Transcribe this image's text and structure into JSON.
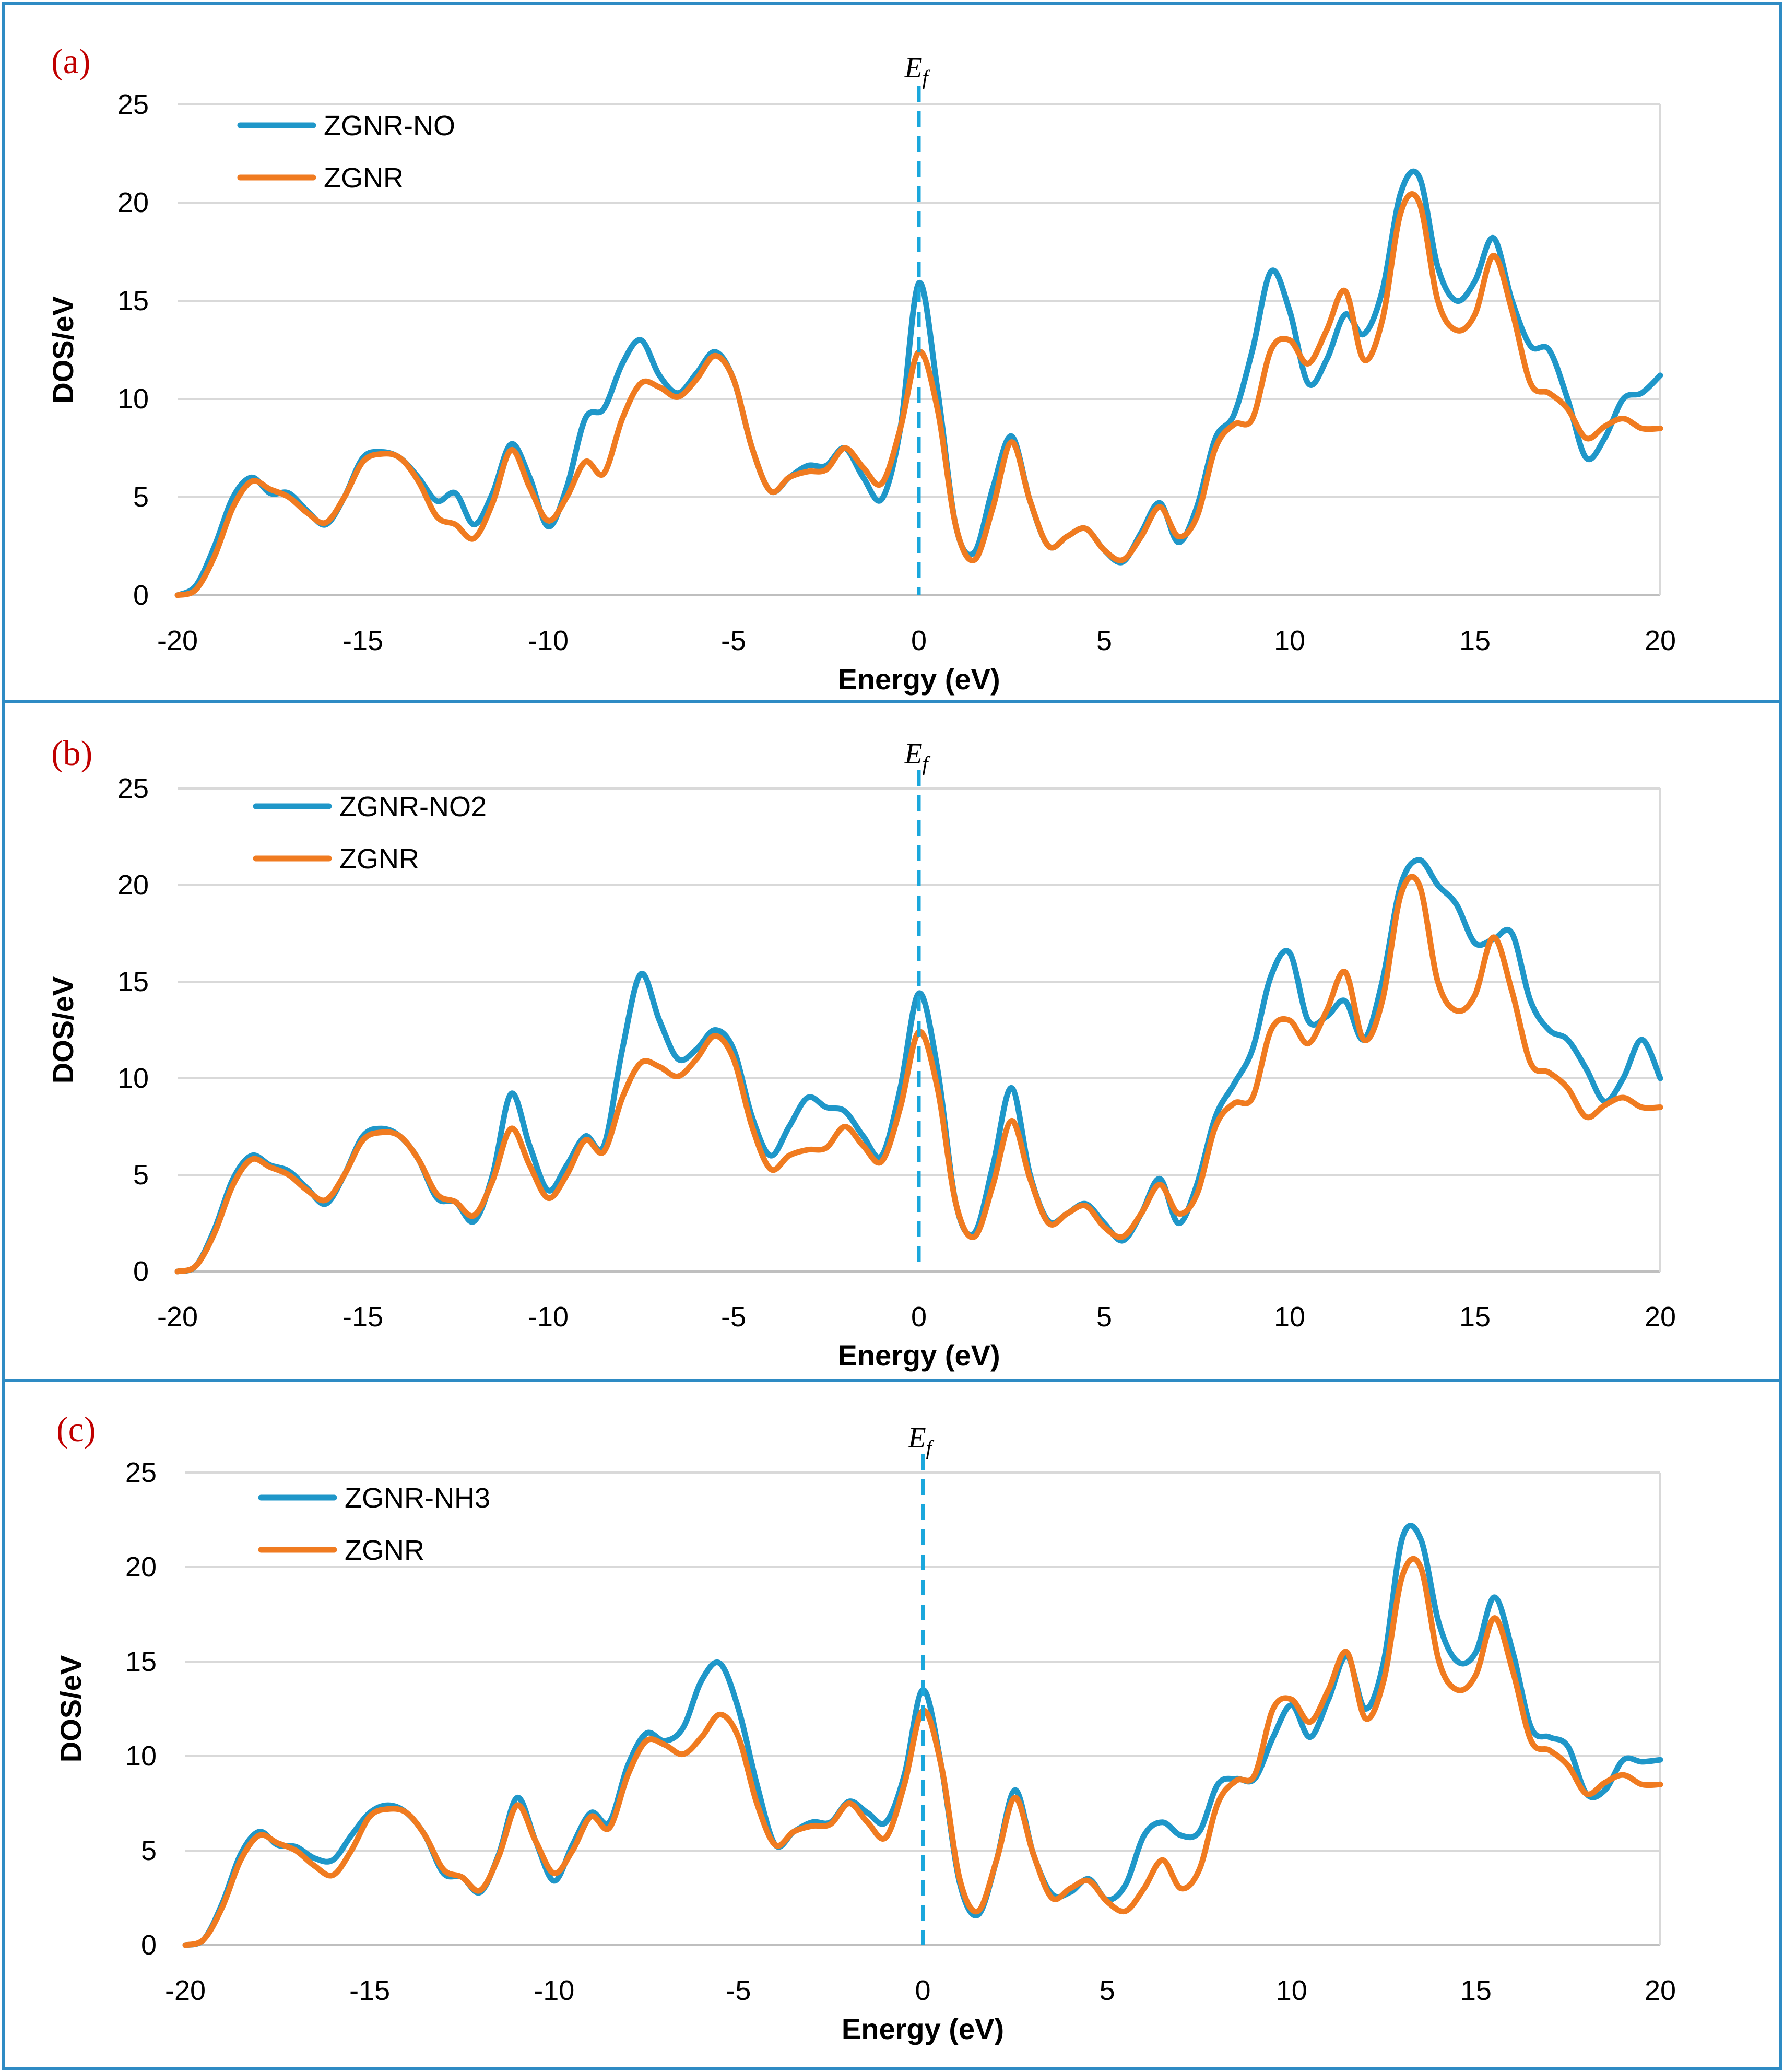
{
  "colors": {
    "doped": "#1f97c9",
    "pristine": "#f07b20",
    "fermi": "#1aa7dc",
    "panel_label": "#c00000"
  },
  "fermi_label": {
    "main": "E",
    "sub": "f"
  },
  "chart_data": [
    {
      "type": "line",
      "panel_label": "(a)",
      "xlabel": "Energy (eV)",
      "ylabel": "DOS/eV",
      "xlim": [
        -20,
        20
      ],
      "ylim": [
        0,
        25
      ],
      "xticks": [
        -20,
        -15,
        -10,
        -5,
        0,
        5,
        10,
        15,
        20
      ],
      "yticks": [
        0,
        5,
        10,
        15,
        20,
        25
      ],
      "fermi_x": 0,
      "series": [
        {
          "name": "ZGNR-NO",
          "color_key": "doped",
          "x": [
            -20,
            -19.5,
            -19,
            -18.5,
            -18,
            -17.5,
            -17,
            -16.5,
            -16,
            -15.5,
            -15,
            -14.5,
            -14,
            -13.5,
            -13,
            -12.5,
            -12,
            -11.5,
            -11,
            -10.5,
            -10,
            -9.5,
            -9,
            -8.5,
            -8,
            -7.5,
            -7,
            -6.5,
            -6,
            -5.5,
            -5,
            -4.5,
            -4,
            -3.5,
            -3,
            -2.5,
            -2,
            -1.5,
            -1,
            -0.5,
            0,
            0.5,
            1,
            1.5,
            2,
            2.5,
            3,
            3.5,
            4,
            4.5,
            5,
            5.5,
            6,
            6.5,
            7,
            7.5,
            8,
            8.5,
            9,
            9.5,
            10,
            10.5,
            11,
            11.5,
            12,
            12.5,
            13,
            13.5,
            14,
            14.5,
            15,
            15.5,
            16,
            16.5,
            17,
            17.5,
            18,
            18.5,
            19,
            19.5,
            20
          ],
          "y": [
            0,
            0.5,
            2.5,
            5.0,
            6.0,
            5.2,
            5.2,
            4.3,
            3.6,
            5.0,
            7.0,
            7.3,
            7.0,
            6.0,
            4.8,
            5.2,
            3.6,
            5.2,
            7.7,
            6.0,
            3.5,
            5.5,
            9.0,
            9.5,
            11.8,
            13.0,
            11.2,
            10.3,
            11.3,
            12.4,
            11.0,
            7.5,
            5.3,
            6.0,
            6.6,
            6.6,
            7.5,
            6.0,
            4.9,
            8.5,
            15.9,
            10.5,
            3.5,
            2.2,
            5.5,
            8.1,
            4.8,
            2.5,
            3.0,
            3.4,
            2.3,
            1.7,
            3.2,
            4.7,
            2.7,
            4.5,
            8.0,
            9.2,
            12.5,
            16.5,
            14.5,
            10.8,
            12.0,
            14.3,
            13.3,
            15.5,
            20.5,
            21.3,
            16.7,
            15.0,
            16.0,
            18.2,
            15.0,
            12.7,
            12.5,
            10.0,
            7.0,
            8.0,
            10.0,
            10.3,
            11.2
          ]
        },
        {
          "name": "ZGNR",
          "color_key": "pristine",
          "x": [
            -20,
            -19.5,
            -19,
            -18.5,
            -18,
            -17.5,
            -17,
            -16.5,
            -16,
            -15.5,
            -15,
            -14.5,
            -14,
            -13.5,
            -13,
            -12.5,
            -12,
            -11.5,
            -11,
            -10.5,
            -10,
            -9.5,
            -9,
            -8.5,
            -8,
            -7.5,
            -7,
            -6.5,
            -6,
            -5.5,
            -5,
            -4.5,
            -4,
            -3.5,
            -3,
            -2.5,
            -2,
            -1.5,
            -1,
            -0.5,
            0,
            0.5,
            1,
            1.5,
            2,
            2.5,
            3,
            3.5,
            4,
            4.5,
            5,
            5.5,
            6,
            6.5,
            7,
            7.5,
            8,
            8.5,
            9,
            9.5,
            10,
            10.5,
            11,
            11.5,
            12,
            12.5,
            13,
            13.5,
            14,
            14.5,
            15,
            15.5,
            16,
            16.5,
            17,
            17.5,
            18,
            18.5,
            19,
            19.5,
            20
          ],
          "y": [
            0,
            0.3,
            2.0,
            4.5,
            5.8,
            5.4,
            5.0,
            4.2,
            3.7,
            5.0,
            6.8,
            7.2,
            7.0,
            5.8,
            4.0,
            3.6,
            2.9,
            4.7,
            7.4,
            5.5,
            3.8,
            5.0,
            6.8,
            6.2,
            9.0,
            10.8,
            10.6,
            10.1,
            11.0,
            12.2,
            11.0,
            7.5,
            5.3,
            6.0,
            6.3,
            6.4,
            7.5,
            6.5,
            5.7,
            8.5,
            12.4,
            9.5,
            3.5,
            1.8,
            4.5,
            7.8,
            4.8,
            2.5,
            3.0,
            3.4,
            2.3,
            1.8,
            3.0,
            4.5,
            3.0,
            4.0,
            7.5,
            8.7,
            9.0,
            12.5,
            13.0,
            11.8,
            13.5,
            15.5,
            12.0,
            14.0,
            19.5,
            20.0,
            15.0,
            13.5,
            14.3,
            17.3,
            14.5,
            10.8,
            10.3,
            9.5,
            8.0,
            8.6,
            9.0,
            8.5,
            8.5
          ]
        }
      ]
    },
    {
      "type": "line",
      "panel_label": "(b)",
      "xlabel": "Energy (eV)",
      "ylabel": "DOS/eV",
      "xlim": [
        -20,
        20
      ],
      "ylim": [
        0,
        25
      ],
      "xticks": [
        -20,
        -15,
        -10,
        -5,
        0,
        5,
        10,
        15,
        20
      ],
      "yticks": [
        0,
        5,
        10,
        15,
        20,
        25
      ],
      "fermi_x": 0,
      "series": [
        {
          "name": "ZGNR-NO2",
          "color_key": "doped",
          "x": [
            -20,
            -19.5,
            -19,
            -18.5,
            -18,
            -17.5,
            -17,
            -16.5,
            -16,
            -15.5,
            -15,
            -14.5,
            -14,
            -13.5,
            -13,
            -12.5,
            -12,
            -11.5,
            -11,
            -10.5,
            -10,
            -9.5,
            -9,
            -8.5,
            -8,
            -7.5,
            -7,
            -6.5,
            -6,
            -5.5,
            -5,
            -4.5,
            -4,
            -3.5,
            -3,
            -2.5,
            -2,
            -1.5,
            -1,
            -0.5,
            0,
            0.5,
            1,
            1.5,
            2,
            2.5,
            3,
            3.5,
            4,
            4.5,
            5,
            5.5,
            6,
            6.5,
            7,
            7.5,
            8,
            8.5,
            9,
            9.5,
            10,
            10.5,
            11,
            11.5,
            12,
            12.5,
            13,
            13.5,
            14,
            14.5,
            15,
            15.5,
            16,
            16.5,
            17,
            17.5,
            18,
            18.5,
            19,
            19.5,
            20
          ],
          "y": [
            0,
            0.3,
            2.2,
            4.8,
            6.0,
            5.5,
            5.2,
            4.3,
            3.5,
            5.0,
            7.0,
            7.4,
            7.0,
            5.8,
            3.8,
            3.6,
            2.6,
            5.0,
            9.2,
            6.5,
            4.2,
            5.5,
            7.0,
            6.5,
            11.5,
            15.4,
            13.0,
            11.0,
            11.5,
            12.5,
            11.5,
            8.0,
            6.0,
            7.5,
            9.0,
            8.5,
            8.3,
            7.0,
            6.0,
            9.5,
            14.4,
            10.5,
            3.5,
            2.0,
            5.5,
            9.5,
            5.0,
            2.6,
            3.0,
            3.5,
            2.5,
            1.6,
            3.0,
            4.8,
            2.5,
            4.5,
            8.0,
            9.7,
            11.5,
            15.3,
            16.5,
            13.0,
            13.2,
            14.0,
            12.0,
            15.0,
            20.0,
            21.3,
            20.0,
            19.0,
            17.0,
            17.2,
            17.5,
            14.0,
            12.5,
            12.0,
            10.5,
            8.8,
            10.0,
            12.0,
            10.0
          ]
        },
        {
          "name": "ZGNR",
          "color_key": "pristine",
          "x": [
            -20,
            -19.5,
            -19,
            -18.5,
            -18,
            -17.5,
            -17,
            -16.5,
            -16,
            -15.5,
            -15,
            -14.5,
            -14,
            -13.5,
            -13,
            -12.5,
            -12,
            -11.5,
            -11,
            -10.5,
            -10,
            -9.5,
            -9,
            -8.5,
            -8,
            -7.5,
            -7,
            -6.5,
            -6,
            -5.5,
            -5,
            -4.5,
            -4,
            -3.5,
            -3,
            -2.5,
            -2,
            -1.5,
            -1,
            -0.5,
            0,
            0.5,
            1,
            1.5,
            2,
            2.5,
            3,
            3.5,
            4,
            4.5,
            5,
            5.5,
            6,
            6.5,
            7,
            7.5,
            8,
            8.5,
            9,
            9.5,
            10,
            10.5,
            11,
            11.5,
            12,
            12.5,
            13,
            13.5,
            14,
            14.5,
            15,
            15.5,
            16,
            16.5,
            17,
            17.5,
            18,
            18.5,
            19,
            19.5,
            20
          ],
          "y": [
            0,
            0.3,
            2.0,
            4.5,
            5.8,
            5.4,
            5.0,
            4.2,
            3.7,
            5.0,
            6.8,
            7.2,
            7.0,
            5.8,
            4.0,
            3.6,
            2.9,
            4.7,
            7.4,
            5.5,
            3.8,
            5.0,
            6.8,
            6.2,
            9.0,
            10.8,
            10.6,
            10.1,
            11.0,
            12.2,
            11.0,
            7.5,
            5.3,
            6.0,
            6.3,
            6.4,
            7.5,
            6.5,
            5.7,
            8.5,
            12.4,
            9.5,
            3.5,
            1.8,
            4.5,
            7.8,
            4.8,
            2.5,
            3.0,
            3.4,
            2.3,
            1.8,
            3.0,
            4.5,
            3.0,
            4.0,
            7.5,
            8.7,
            9.0,
            12.5,
            13.0,
            11.8,
            13.5,
            15.5,
            12.0,
            14.0,
            19.5,
            20.0,
            15.0,
            13.5,
            14.3,
            17.3,
            14.5,
            10.8,
            10.3,
            9.5,
            8.0,
            8.6,
            9.0,
            8.5,
            8.5
          ]
        }
      ]
    },
    {
      "type": "line",
      "panel_label": "(c)",
      "xlabel": "Energy (eV)",
      "ylabel": "DOS/eV",
      "xlim": [
        -20,
        20
      ],
      "ylim": [
        0,
        25
      ],
      "xticks": [
        -20,
        -15,
        -10,
        -5,
        0,
        5,
        10,
        15,
        20
      ],
      "yticks": [
        0,
        5,
        10,
        15,
        20,
        25
      ],
      "fermi_x": 0,
      "series": [
        {
          "name": "ZGNR-NH3",
          "color_key": "doped",
          "x": [
            -20,
            -19.5,
            -19,
            -18.5,
            -18,
            -17.5,
            -17,
            -16.5,
            -16,
            -15.5,
            -15,
            -14.5,
            -14,
            -13.5,
            -13,
            -12.5,
            -12,
            -11.5,
            -11,
            -10.5,
            -10,
            -9.5,
            -9,
            -8.5,
            -8,
            -7.5,
            -7,
            -6.5,
            -6,
            -5.5,
            -5,
            -4.5,
            -4,
            -3.5,
            -3,
            -2.5,
            -2,
            -1.5,
            -1,
            -0.5,
            0,
            0.5,
            1,
            1.5,
            2,
            2.5,
            3,
            3.5,
            4,
            4.5,
            5,
            5.5,
            6,
            6.5,
            7,
            7.5,
            8,
            8.5,
            9,
            9.5,
            10,
            10.5,
            11,
            11.5,
            12,
            12.5,
            13,
            13.5,
            14,
            14.5,
            15,
            15.5,
            16,
            16.5,
            17,
            17.5,
            18,
            18.5,
            19,
            19.5,
            20
          ],
          "y": [
            0,
            0.3,
            2.2,
            4.8,
            6.0,
            5.3,
            5.2,
            4.6,
            4.5,
            5.8,
            7.0,
            7.4,
            7.0,
            5.8,
            3.8,
            3.6,
            2.8,
            4.8,
            7.8,
            5.5,
            3.4,
            5.3,
            7.0,
            6.5,
            9.5,
            11.2,
            10.8,
            11.5,
            14.0,
            14.9,
            12.5,
            8.5,
            5.3,
            6.0,
            6.5,
            6.5,
            7.6,
            7.0,
            6.5,
            9.0,
            13.5,
            9.5,
            3.3,
            1.6,
            4.5,
            8.2,
            4.8,
            2.7,
            2.8,
            3.5,
            2.4,
            3.2,
            5.8,
            6.5,
            5.8,
            6.0,
            8.5,
            8.8,
            8.8,
            11.0,
            12.7,
            11.0,
            13.0,
            15.3,
            12.5,
            15.0,
            21.5,
            21.5,
            17.0,
            15.0,
            15.5,
            18.4,
            15.5,
            11.5,
            11.0,
            10.5,
            8.0,
            8.2,
            9.8,
            9.7,
            9.8
          ]
        },
        {
          "name": "ZGNR",
          "color_key": "pristine",
          "x": [
            -20,
            -19.5,
            -19,
            -18.5,
            -18,
            -17.5,
            -17,
            -16.5,
            -16,
            -15.5,
            -15,
            -14.5,
            -14,
            -13.5,
            -13,
            -12.5,
            -12,
            -11.5,
            -11,
            -10.5,
            -10,
            -9.5,
            -9,
            -8.5,
            -8,
            -7.5,
            -7,
            -6.5,
            -6,
            -5.5,
            -5,
            -4.5,
            -4,
            -3.5,
            -3,
            -2.5,
            -2,
            -1.5,
            -1,
            -0.5,
            0,
            0.5,
            1,
            1.5,
            2,
            2.5,
            3,
            3.5,
            4,
            4.5,
            5,
            5.5,
            6,
            6.5,
            7,
            7.5,
            8,
            8.5,
            9,
            9.5,
            10,
            10.5,
            11,
            11.5,
            12,
            12.5,
            13,
            13.5,
            14,
            14.5,
            15,
            15.5,
            16,
            16.5,
            17,
            17.5,
            18,
            18.5,
            19,
            19.5,
            20
          ],
          "y": [
            0,
            0.3,
            2.0,
            4.5,
            5.8,
            5.4,
            5.0,
            4.2,
            3.7,
            5.0,
            6.8,
            7.2,
            7.0,
            5.8,
            4.0,
            3.6,
            2.9,
            4.7,
            7.4,
            5.5,
            3.8,
            5.0,
            6.8,
            6.2,
            9.0,
            10.8,
            10.6,
            10.1,
            11.0,
            12.2,
            11.0,
            7.5,
            5.3,
            6.0,
            6.3,
            6.4,
            7.5,
            6.5,
            5.7,
            8.5,
            12.4,
            9.5,
            3.5,
            1.8,
            4.5,
            7.8,
            4.8,
            2.5,
            3.0,
            3.4,
            2.3,
            1.8,
            3.0,
            4.5,
            3.0,
            4.0,
            7.5,
            8.7,
            9.0,
            12.5,
            13.0,
            11.8,
            13.5,
            15.5,
            12.0,
            14.0,
            19.5,
            20.0,
            15.0,
            13.5,
            14.3,
            17.3,
            14.5,
            10.8,
            10.3,
            9.5,
            8.0,
            8.6,
            9.0,
            8.5,
            8.5
          ]
        }
      ]
    }
  ]
}
